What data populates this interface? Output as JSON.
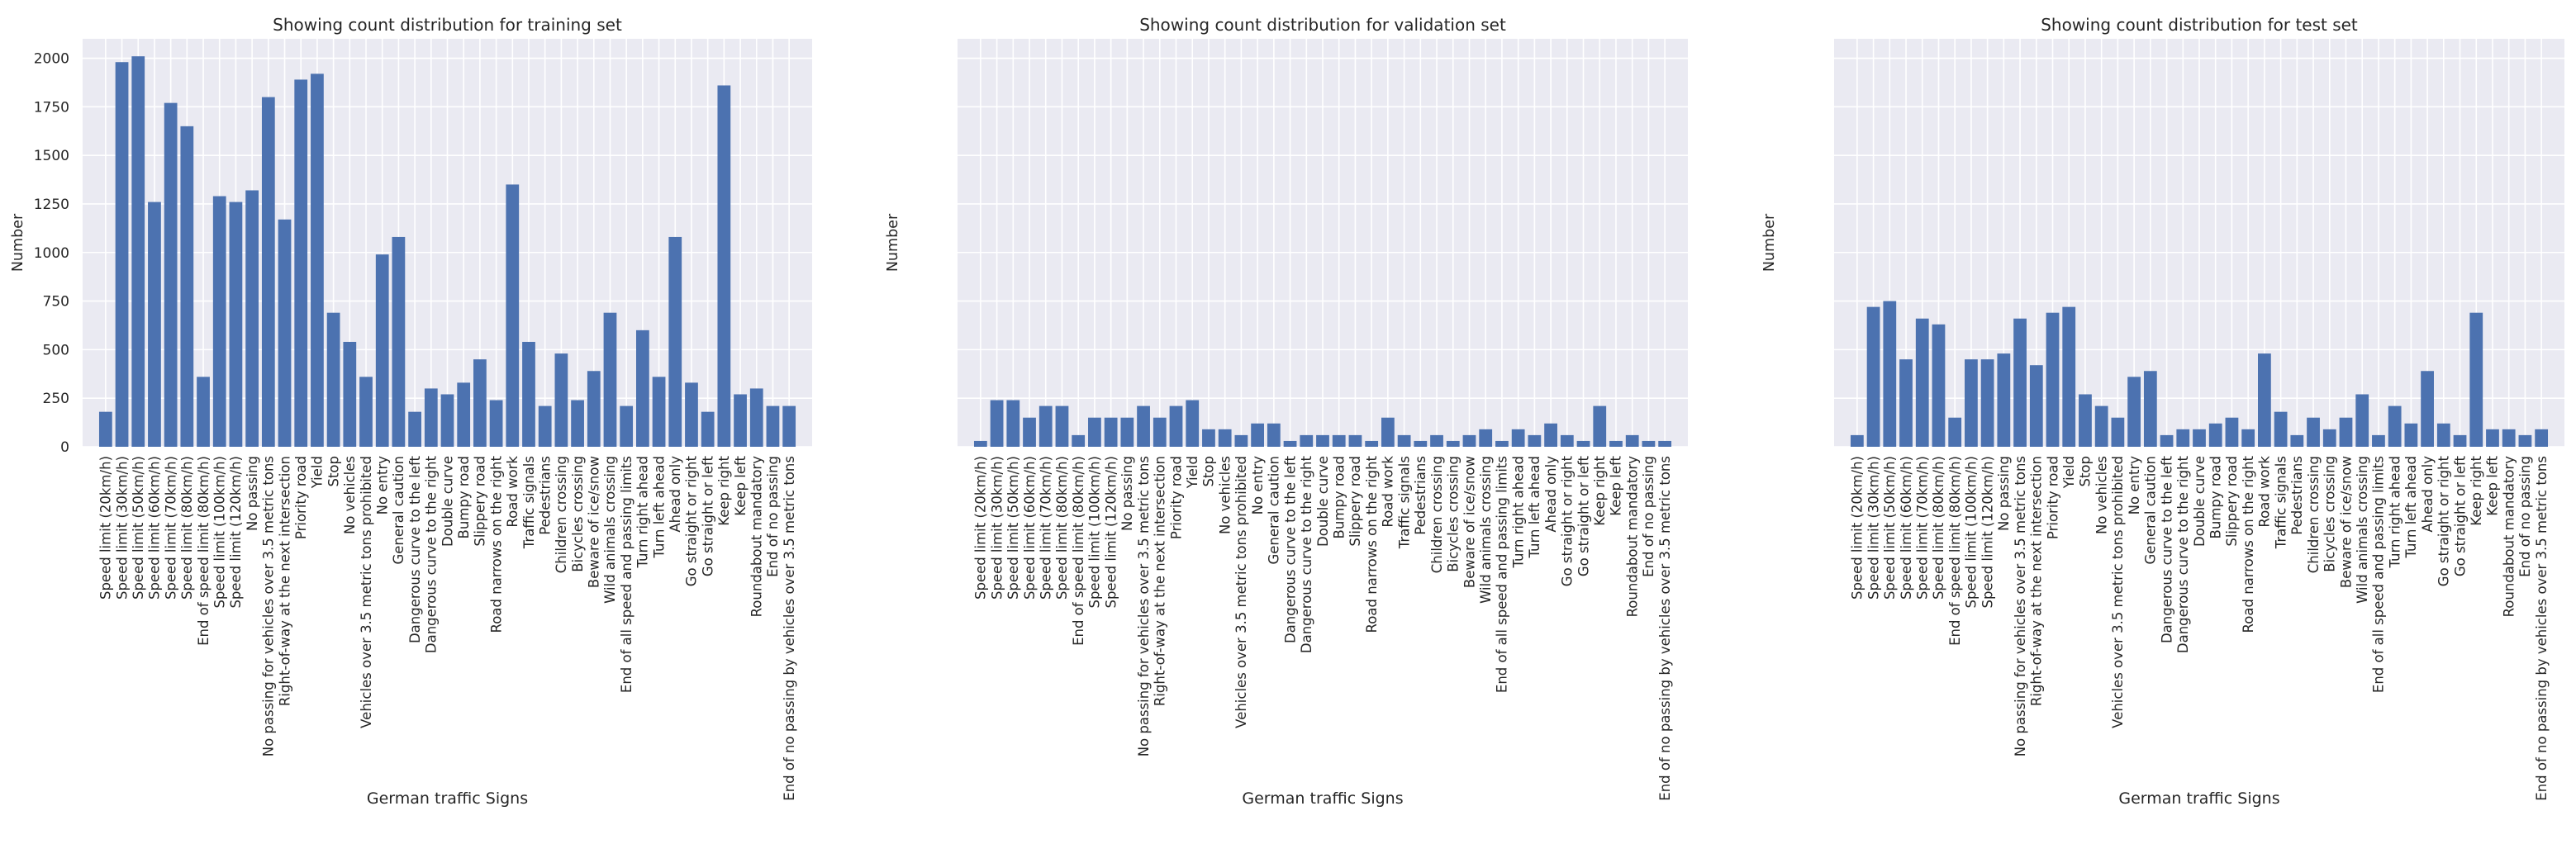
{
  "chart_data": [
    {
      "type": "bar",
      "title": "Showing count distribution for training set",
      "xlabel": "German traffic Signs",
      "ylabel": "Number",
      "ylim": [
        0,
        2100
      ],
      "yticks": [
        0,
        250,
        500,
        750,
        1000,
        1250,
        1500,
        1750,
        2000
      ],
      "show_yticklabels": true,
      "grid": true,
      "color": "#4c72b0",
      "categories": [
        "Speed limit (20km/h)",
        "Speed limit (30km/h)",
        "Speed limit (50km/h)",
        "Speed limit (60km/h)",
        "Speed limit (70km/h)",
        "Speed limit (80km/h)",
        "End of speed limit (80km/h)",
        "Speed limit (100km/h)",
        "Speed limit (120km/h)",
        "No passing",
        "No passing for vehicles over 3.5 metric tons",
        "Right-of-way at the next intersection",
        "Priority road",
        "Yield",
        "Stop",
        "No vehicles",
        "Vehicles over 3.5 metric tons prohibited",
        "No entry",
        "General caution",
        "Dangerous curve to the left",
        "Dangerous curve to the right",
        "Double curve",
        "Bumpy road",
        "Slippery road",
        "Road narrows on the right",
        "Road work",
        "Traffic signals",
        "Pedestrians",
        "Children crossing",
        "Bicycles crossing",
        "Beware of ice/snow",
        "Wild animals crossing",
        "End of all speed and passing limits",
        "Turn right ahead",
        "Turn left ahead",
        "Ahead only",
        "Go straight or right",
        "Go straight or left",
        "Keep right",
        "Keep left",
        "Roundabout mandatory",
        "End of no passing",
        "End of no passing by vehicles over 3.5 metric tons"
      ],
      "values": [
        180,
        1980,
        2010,
        1260,
        1770,
        1650,
        360,
        1290,
        1260,
        1320,
        1800,
        1170,
        1890,
        1920,
        690,
        540,
        360,
        990,
        1080,
        180,
        300,
        270,
        330,
        450,
        240,
        1350,
        540,
        210,
        480,
        240,
        390,
        690,
        210,
        600,
        360,
        1080,
        330,
        180,
        1860,
        270,
        300,
        210,
        210
      ]
    },
    {
      "type": "bar",
      "title": "Showing count distribution for validation set",
      "xlabel": "German traffic Signs",
      "ylabel": "Number",
      "ylim": [
        0,
        2100
      ],
      "show_yticklabels": false,
      "grid": true,
      "color": "#4c72b0",
      "categories": [
        "Speed limit (20km/h)",
        "Speed limit (30km/h)",
        "Speed limit (50km/h)",
        "Speed limit (60km/h)",
        "Speed limit (70km/h)",
        "Speed limit (80km/h)",
        "End of speed limit (80km/h)",
        "Speed limit (100km/h)",
        "Speed limit (120km/h)",
        "No passing",
        "No passing for vehicles over 3.5 metric tons",
        "Right-of-way at the next intersection",
        "Priority road",
        "Yield",
        "Stop",
        "No vehicles",
        "Vehicles over 3.5 metric tons prohibited",
        "No entry",
        "General caution",
        "Dangerous curve to the left",
        "Dangerous curve to the right",
        "Double curve",
        "Bumpy road",
        "Slippery road",
        "Road narrows on the right",
        "Road work",
        "Traffic signals",
        "Pedestrians",
        "Children crossing",
        "Bicycles crossing",
        "Beware of ice/snow",
        "Wild animals crossing",
        "End of all speed and passing limits",
        "Turn right ahead",
        "Turn left ahead",
        "Ahead only",
        "Go straight or right",
        "Go straight or left",
        "Keep right",
        "Keep left",
        "Roundabout mandatory",
        "End of no passing",
        "End of no passing by vehicles over 3.5 metric tons"
      ],
      "values": [
        30,
        240,
        240,
        150,
        210,
        210,
        60,
        150,
        150,
        150,
        210,
        150,
        210,
        240,
        90,
        90,
        60,
        120,
        120,
        30,
        60,
        60,
        60,
        60,
        30,
        150,
        60,
        30,
        60,
        30,
        60,
        90,
        30,
        90,
        60,
        120,
        60,
        30,
        210,
        30,
        60,
        30,
        30
      ]
    },
    {
      "type": "bar",
      "title": "Showing count distribution for test set",
      "xlabel": "German traffic Signs",
      "ylabel": "Number",
      "ylim": [
        0,
        2100
      ],
      "show_yticklabels": false,
      "grid": true,
      "color": "#4c72b0",
      "categories": [
        "Speed limit (20km/h)",
        "Speed limit (30km/h)",
        "Speed limit (50km/h)",
        "Speed limit (60km/h)",
        "Speed limit (70km/h)",
        "Speed limit (80km/h)",
        "End of speed limit (80km/h)",
        "Speed limit (100km/h)",
        "Speed limit (120km/h)",
        "No passing",
        "No passing for vehicles over 3.5 metric tons",
        "Right-of-way at the next intersection",
        "Priority road",
        "Yield",
        "Stop",
        "No vehicles",
        "Vehicles over 3.5 metric tons prohibited",
        "No entry",
        "General caution",
        "Dangerous curve to the left",
        "Dangerous curve to the right",
        "Double curve",
        "Bumpy road",
        "Slippery road",
        "Road narrows on the right",
        "Road work",
        "Traffic signals",
        "Pedestrians",
        "Children crossing",
        "Bicycles crossing",
        "Beware of ice/snow",
        "Wild animals crossing",
        "End of all speed and passing limits",
        "Turn right ahead",
        "Turn left ahead",
        "Ahead only",
        "Go straight or right",
        "Go straight or left",
        "Keep right",
        "Keep left",
        "Roundabout mandatory",
        "End of no passing",
        "End of no passing by vehicles over 3.5 metric tons"
      ],
      "values": [
        60,
        720,
        750,
        450,
        660,
        630,
        150,
        450,
        450,
        480,
        660,
        420,
        690,
        720,
        270,
        210,
        150,
        360,
        390,
        60,
        90,
        90,
        120,
        150,
        90,
        480,
        180,
        60,
        150,
        90,
        150,
        270,
        60,
        210,
        120,
        390,
        120,
        60,
        690,
        90,
        90,
        60,
        90
      ]
    }
  ]
}
